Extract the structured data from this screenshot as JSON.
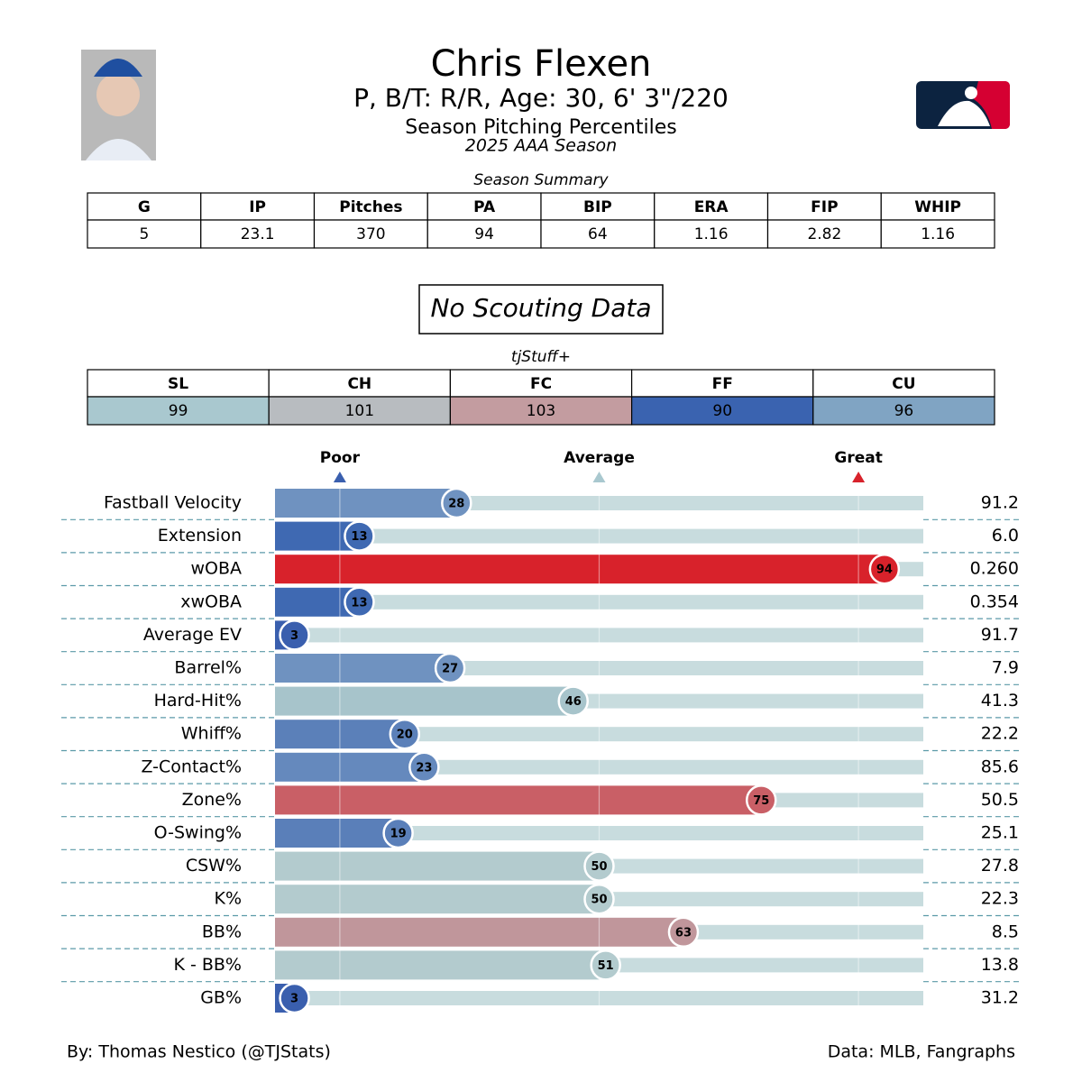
{
  "header": {
    "name": "Chris Flexen",
    "bio": "P, B/T: R/R, Age: 30, 6' 3\"/220",
    "subtitle": "Season Pitching Percentiles",
    "season": "2025 AAA Season"
  },
  "summary": {
    "title": "Season Summary",
    "columns": [
      "G",
      "IP",
      "Pitches",
      "PA",
      "BIP",
      "ERA",
      "FIP",
      "WHIP"
    ],
    "values": [
      "5",
      "23.1",
      "370",
      "94",
      "64",
      "1.16",
      "2.82",
      "1.16"
    ]
  },
  "scouting": "No Scouting Data",
  "tjstuff": {
    "title": "tjStuff+",
    "columns": [
      "SL",
      "CH",
      "FC",
      "FF",
      "CU"
    ],
    "values": [
      "99",
      "101",
      "103",
      "90",
      "96"
    ],
    "colors": [
      "#a9c8cf",
      "#b8bcc0",
      "#c39ca0",
      "#3a63b0",
      "#80a4c3"
    ]
  },
  "chart_data": {
    "type": "bar",
    "categories": [
      "Fastball Velocity",
      "Extension",
      "wOBA",
      "xwOBA",
      "Average EV",
      "Barrel%",
      "Hard-Hit%",
      "Whiff%",
      "Z-Contact%",
      "Zone%",
      "O-Swing%",
      "CSW%",
      "K%",
      "BB%",
      "K - BB%",
      "GB%"
    ],
    "values": [
      28,
      13,
      94,
      13,
      3,
      27,
      46,
      20,
      23,
      75,
      19,
      50,
      50,
      63,
      51,
      3
    ],
    "colors": [
      "#6f92c0",
      "#3f69b2",
      "#d8222b",
      "#3f69b2",
      "#3a5fae",
      "#6f92c0",
      "#a7c4cb",
      "#5b80b9",
      "#6589bd",
      "#c95f66",
      "#5a7fb9",
      "#b3cbce",
      "#b3cbce",
      "#c0969b",
      "#b3cbce",
      "#3a5fae"
    ],
    "stats": [
      "91.2",
      "6.0",
      "0.260",
      "0.354",
      "91.7",
      "7.9",
      "41.3",
      "22.2",
      "85.6",
      "50.5",
      "25.1",
      "27.8",
      "22.3",
      "8.5",
      "13.8",
      "31.2"
    ],
    "xlim": [
      0,
      100
    ],
    "xticks": [
      {
        "value": 10,
        "label": "Poor"
      },
      {
        "value": 50,
        "label": "Average"
      },
      {
        "value": 90,
        "label": "Great"
      }
    ],
    "tick_colors": [
      "#3a5fae",
      "#a9c8cf",
      "#d8222b"
    ],
    "grid": true
  },
  "footer": {
    "left": "By: Thomas Nestico (@TJStats)",
    "right": "Data: MLB, Fangraphs"
  }
}
